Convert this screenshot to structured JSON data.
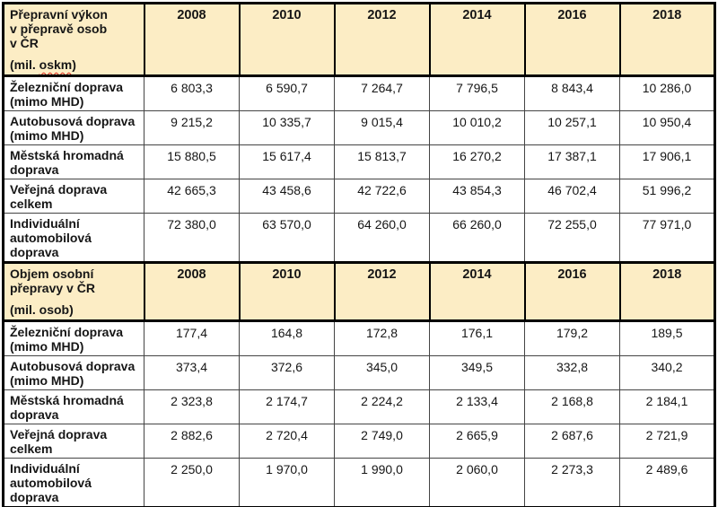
{
  "colors": {
    "header_background": "#FCEDC5",
    "thick_border": "#000000",
    "thin_border": "#444444",
    "spellcheck_underline": "#d92b1c"
  },
  "tables": [
    {
      "title": "Přepravní výkon\nv přepravě osob\nv ČR",
      "unit_before": "(mil. ",
      "unit_word": "oskm",
      "unit_after": ")",
      "years": [
        "2008",
        "2010",
        "2012",
        "2014",
        "2016",
        "2018"
      ],
      "rows": [
        {
          "label": "Železniční doprava\n(mimo MHD)",
          "values": [
            "6 803,3",
            "6 590,7",
            "7 264,7",
            "7 796,5",
            "8 843,4",
            "10 286,0"
          ]
        },
        {
          "label": "Autobusová doprava\n(mimo MHD)",
          "values": [
            "9 215,2",
            "10 335,7",
            "9 015,4",
            "10 010,2",
            "10 257,1",
            "10 950,4"
          ]
        },
        {
          "label": "Městská hromadná\ndoprava",
          "values": [
            "15 880,5",
            "15 617,4",
            "15 813,7",
            "16 270,2",
            "17 387,1",
            "17 906,1"
          ]
        },
        {
          "label": "Veřejná doprava\ncelkem",
          "values": [
            "42 665,3",
            "43 458,6",
            "42 722,6",
            "43 854,3",
            "46 702,4",
            "51 996,2"
          ]
        },
        {
          "label": "Individuální\nautomobilová\ndoprava",
          "values": [
            "72 380,0",
            "63 570,0",
            "64 260,0",
            "66 260,0",
            "72 255,0",
            "77 971,0"
          ]
        }
      ]
    },
    {
      "title": "Objem osobní\npřepravy v ČR",
      "unit_before": "(mil. osob)",
      "unit_word": "",
      "unit_after": "",
      "years": [
        "2008",
        "2010",
        "2012",
        "2014",
        "2016",
        "2018"
      ],
      "rows": [
        {
          "label": "Železniční doprava\n(mimo MHD)",
          "values": [
            "177,4",
            "164,8",
            "172,8",
            "176,1",
            "179,2",
            "189,5"
          ]
        },
        {
          "label": "Autobusová doprava\n(mimo MHD)",
          "values": [
            "373,4",
            "372,6",
            "345,0",
            "349,5",
            "332,8",
            "340,2"
          ]
        },
        {
          "label": "Městská hromadná\ndoprava",
          "values": [
            "2 323,8",
            "2 174,7",
            "2 224,2",
            "2 133,4",
            "2 168,8",
            "2 184,1"
          ]
        },
        {
          "label": "Veřejná doprava\ncelkem",
          "values": [
            "2 882,6",
            "2 720,4",
            "2 749,0",
            "2 665,9",
            "2 687,6",
            "2 721,9"
          ]
        },
        {
          "label": "Individuální\nautomobilová\ndoprava",
          "values": [
            "2 250,0",
            "1 970,0",
            "1 990,0",
            "2 060,0",
            "2 273,3",
            "2 489,6"
          ]
        }
      ]
    }
  ]
}
